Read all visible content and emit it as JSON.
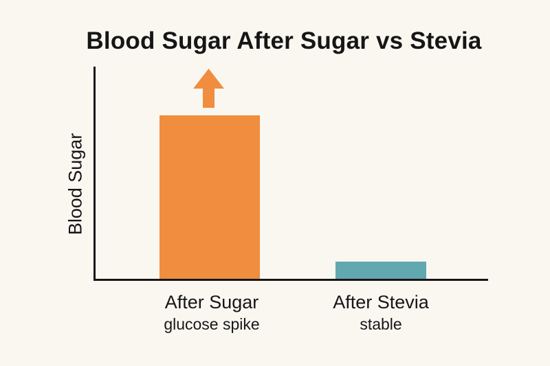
{
  "colors": {
    "background": "#FAF7F1",
    "axis": "#161616",
    "text": "#161616",
    "sugar_bar": "#F08D3E",
    "stevia_bar": "#61A8B0"
  },
  "annotation": {
    "arrow_icon": "up-arrow",
    "arrow_color": "#F08D3E",
    "target_category": "After Sugar"
  },
  "chart_data": {
    "type": "bar",
    "title": "Blood Sugar After Sugar vs Stevia",
    "xlabel": "",
    "ylabel": "Blood Sugar",
    "categories": [
      "After Sugar",
      "After Stevia"
    ],
    "category_sublabels": [
      "glucose spike",
      "stable"
    ],
    "values": [
      0.77,
      0.08
    ],
    "value_units": "fraction of y-axis height (no numeric scale or tick labels shown)",
    "series_colors": [
      "#F08D3E",
      "#61A8B0"
    ],
    "ylim": [
      0,
      1
    ],
    "axis_ticks": "none",
    "grid": false,
    "legend": false,
    "annotations": [
      {
        "type": "up-arrow",
        "target": "After Sugar",
        "color": "#F08D3E"
      }
    ]
  }
}
